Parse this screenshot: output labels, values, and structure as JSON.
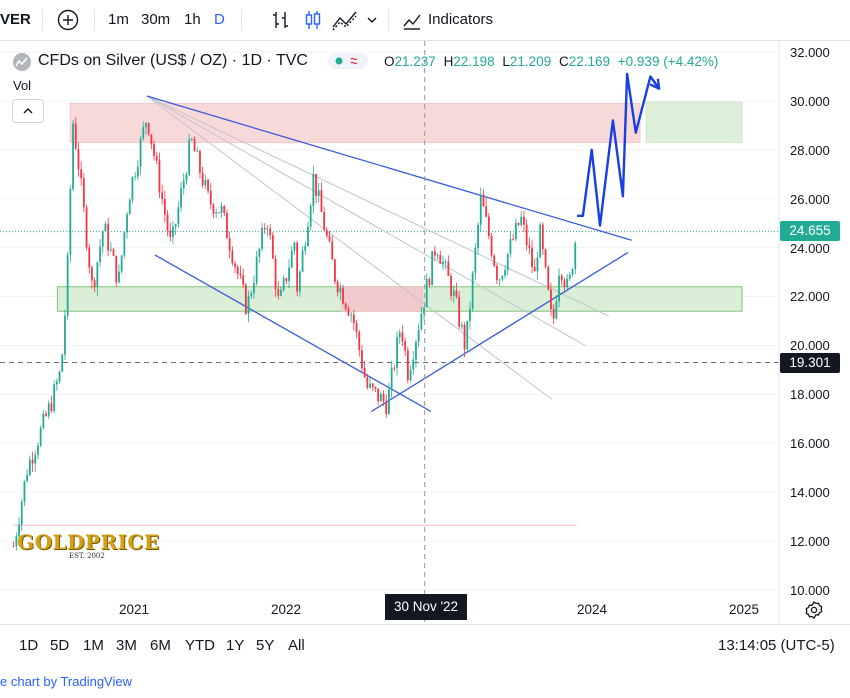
{
  "toolbar": {
    "symbol_fragment": "VER",
    "intervals": [
      "1m",
      "30m",
      "1h",
      "D"
    ],
    "indicators_label": "Indicators"
  },
  "legend": {
    "title": "CFDs on Silver (US$ / OZ) · 1D · TVC",
    "open_key": "O",
    "open": "21.237",
    "high_key": "H",
    "high": "22.198",
    "low_key": "L",
    "low": "21.209",
    "close_key": "C",
    "close": "22.169",
    "change": "+0.939 (+4.42%)",
    "vol_label": "Vol"
  },
  "price_axis": {
    "ticks": [
      "32.000",
      "30.000",
      "28.000",
      "26.000",
      "24.000",
      "22.000",
      "20.000",
      "18.000",
      "16.000",
      "14.000",
      "12.000",
      "10.000"
    ],
    "last_price_label": "24.655",
    "crosshair_price_label": "19.301"
  },
  "time_axis": {
    "ticks": [
      "2021",
      "2022",
      "2024",
      "2025"
    ],
    "crosshair_date_label": "30 Nov '22"
  },
  "range_bar": {
    "ranges": [
      "1D",
      "5D",
      "1M",
      "3M",
      "6M",
      "YTD",
      "1Y",
      "5Y",
      "All"
    ],
    "clock": "13:14:05 (UTC-5)"
  },
  "credit": "e chart by TradingView",
  "logo": {
    "main": "GOLDPRICE",
    "sub": "EST. 2002"
  },
  "colors": {
    "up": "#22ab94",
    "down": "#f23645",
    "trendline": "#3b5bdb",
    "projection": "#1a3fe0"
  },
  "chart_data": {
    "type": "candlestick",
    "title": "CFDs on Silver (US$ / OZ) · 1D · TVC",
    "ylim": [
      10,
      32
    ],
    "y_ticks": [
      32,
      30,
      28,
      26,
      24,
      22,
      20,
      18,
      16,
      14,
      12,
      10
    ],
    "x_ticks": [
      "2021",
      "2022",
      "2024",
      "2025"
    ],
    "anchors": [
      {
        "date": "2020-03-18",
        "price": 11.8
      },
      {
        "date": "2020-04-20",
        "price": 15.0
      },
      {
        "date": "2020-06-15",
        "price": 17.6
      },
      {
        "date": "2020-07-10",
        "price": 19.0
      },
      {
        "date": "2020-07-24",
        "price": 22.5
      },
      {
        "date": "2020-08-07",
        "price": 29.2
      },
      {
        "date": "2020-08-20",
        "price": 27.5
      },
      {
        "date": "2020-09-23",
        "price": 22.3
      },
      {
        "date": "2020-10-20",
        "price": 24.9
      },
      {
        "date": "2020-11-25",
        "price": 22.6
      },
      {
        "date": "2020-12-18",
        "price": 26.0
      },
      {
        "date": "2021-02-01",
        "price": 29.4
      },
      {
        "date": "2021-03-31",
        "price": 24.0
      },
      {
        "date": "2021-05-18",
        "price": 28.4
      },
      {
        "date": "2021-06-30",
        "price": 25.9
      },
      {
        "date": "2021-07-30",
        "price": 25.5
      },
      {
        "date": "2021-09-29",
        "price": 21.5
      },
      {
        "date": "2021-11-16",
        "price": 25.3
      },
      {
        "date": "2021-12-15",
        "price": 21.6
      },
      {
        "date": "2022-01-25",
        "price": 24.5
      },
      {
        "date": "2022-01-28",
        "price": 22.2
      },
      {
        "date": "2022-03-08",
        "price": 26.9
      },
      {
        "date": "2022-04-29",
        "price": 22.8
      },
      {
        "date": "2022-06-10",
        "price": 21.2
      },
      {
        "date": "2022-07-14",
        "price": 18.3
      },
      {
        "date": "2022-09-01",
        "price": 17.6
      },
      {
        "date": "2022-10-04",
        "price": 20.9
      },
      {
        "date": "2022-10-21",
        "price": 18.9
      },
      {
        "date": "2022-11-30",
        "price": 22.0
      },
      {
        "date": "2022-12-28",
        "price": 24.2
      },
      {
        "date": "2023-02-10",
        "price": 21.9
      },
      {
        "date": "2023-03-08",
        "price": 19.9
      },
      {
        "date": "2023-04-14",
        "price": 26.0
      },
      {
        "date": "2023-05-26",
        "price": 22.7
      },
      {
        "date": "2023-07-19",
        "price": 25.2
      },
      {
        "date": "2023-08-22",
        "price": 22.8
      },
      {
        "date": "2023-09-01",
        "price": 24.8
      },
      {
        "date": "2023-10-03",
        "price": 20.7
      },
      {
        "date": "2023-10-20",
        "price": 23.4
      },
      {
        "date": "2023-11-10",
        "price": 22.2
      },
      {
        "date": "2023-11-30",
        "price": 24.7
      }
    ],
    "zones": [
      {
        "kind": "resistance",
        "from": "2020-08-01",
        "to": "2024-04-30",
        "ylim": [
          28.3,
          29.9
        ],
        "color": "#f8d7d9"
      },
      {
        "kind": "support",
        "from": "2020-07-01",
        "to": "2024-12-31",
        "ylim": [
          21.4,
          22.4
        ],
        "color": "#d9eed6"
      },
      {
        "kind": "resistance-overlay",
        "from": "2022-05-15",
        "to": "2022-11-25",
        "ylim": [
          21.4,
          22.4
        ],
        "color": "#f3c9cd"
      },
      {
        "kind": "target",
        "from": "2024-05-15",
        "to": "2024-12-31",
        "ylim": [
          28.3,
          29.95
        ],
        "color": "#dcefd8"
      }
    ],
    "trendlines": [
      {
        "from": {
          "date": "2021-02-01",
          "price": 30.2
        },
        "to": {
          "date": "2024-04-10",
          "price": 24.3
        }
      },
      {
        "from": {
          "date": "2021-02-20",
          "price": 23.7
        },
        "to": {
          "date": "2022-12-15",
          "price": 17.3
        }
      },
      {
        "from": {
          "date": "2022-07-25",
          "price": 17.3
        },
        "to": {
          "date": "2024-04-01",
          "price": 23.8
        }
      }
    ],
    "fan_lines": [
      {
        "from": {
          "date": "2021-02-01",
          "price": 30.2
        },
        "to": {
          "date": "2024-02-15",
          "price": 21.2
        }
      },
      {
        "from": {
          "date": "2021-02-01",
          "price": 30.2
        },
        "to": {
          "date": "2023-12-20",
          "price": 20.0
        }
      },
      {
        "from": {
          "date": "2021-02-01",
          "price": 30.2
        },
        "to": {
          "date": "2023-10-01",
          "price": 17.8
        }
      }
    ],
    "projection": [
      {
        "date": "2023-12-01",
        "price": 25.3
      },
      {
        "date": "2023-12-15",
        "price": 25.3
      },
      {
        "date": "2024-01-05",
        "price": 28.0
      },
      {
        "date": "2024-01-25",
        "price": 24.9
      },
      {
        "date": "2024-02-25",
        "price": 29.2
      },
      {
        "date": "2024-03-20",
        "price": 26.1
      },
      {
        "date": "2024-03-30",
        "price": 31.1
      },
      {
        "date": "2024-04-20",
        "price": 28.7
      },
      {
        "date": "2024-05-25",
        "price": 31.0
      },
      {
        "date": "2024-06-15",
        "price": 30.5
      }
    ],
    "horizontal_dashed": [
      {
        "price": 24.655,
        "style": "dotted"
      },
      {
        "price": 19.301,
        "style": "dashed"
      },
      {
        "price": 12.65,
        "style": "solid-faint",
        "from": "2020-03-18",
        "to": "2023-11-30"
      }
    ],
    "crosshair": {
      "date": "2022-11-30",
      "price": 19.301
    }
  }
}
